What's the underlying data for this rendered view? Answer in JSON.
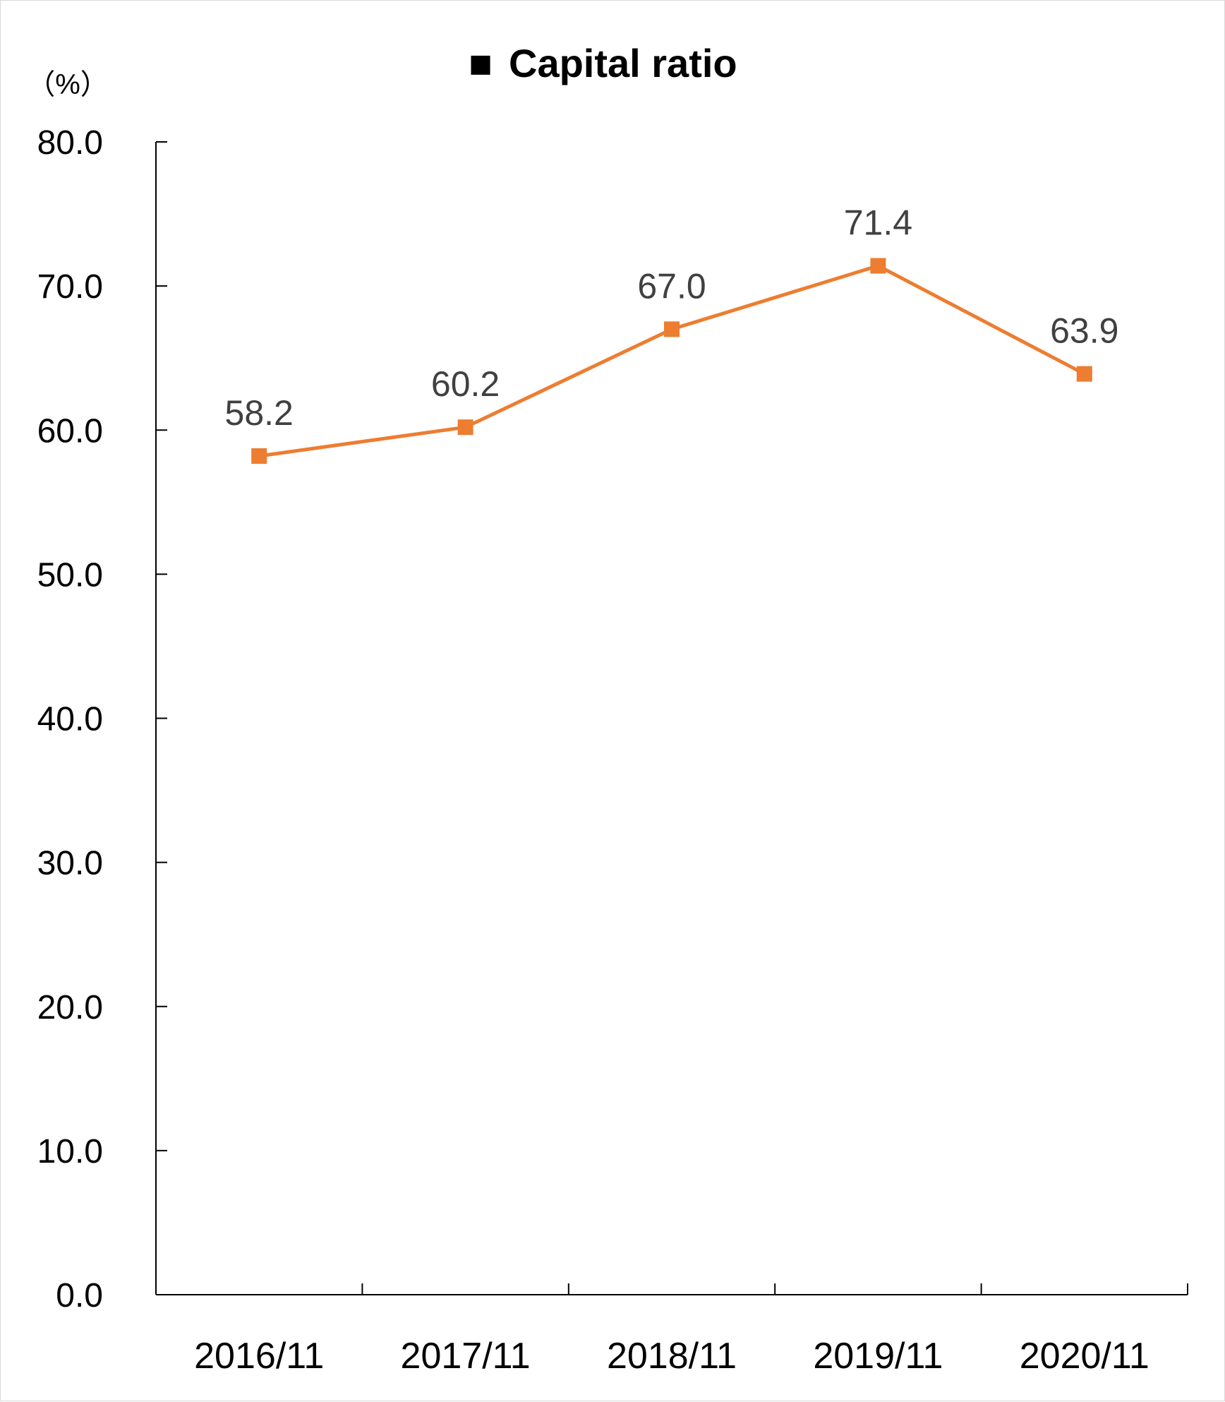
{
  "chart_data": {
    "type": "line",
    "title": "Capital ratio",
    "title_marker": "■",
    "unit_label": "（%）",
    "categories": [
      "2016/11",
      "2017/11",
      "2018/11",
      "2019/11",
      "2020/11"
    ],
    "series": [
      {
        "values": [
          58.2,
          60.2,
          67.0,
          71.4,
          63.9
        ],
        "data_labels": [
          "58.2",
          "60.2",
          "67.0",
          "71.4",
          "63.9"
        ],
        "color": "#ED7D31",
        "marker": "square"
      }
    ],
    "ylim": [
      0,
      80
    ],
    "y_ticks": [
      0,
      10,
      20,
      30,
      40,
      50,
      60,
      70,
      80
    ],
    "y_tick_labels": [
      "0.0",
      "10.0",
      "20.0",
      "30.0",
      "40.0",
      "50.0",
      "60.0",
      "70.0",
      "80.0"
    ],
    "grid": false,
    "legend": "none"
  }
}
